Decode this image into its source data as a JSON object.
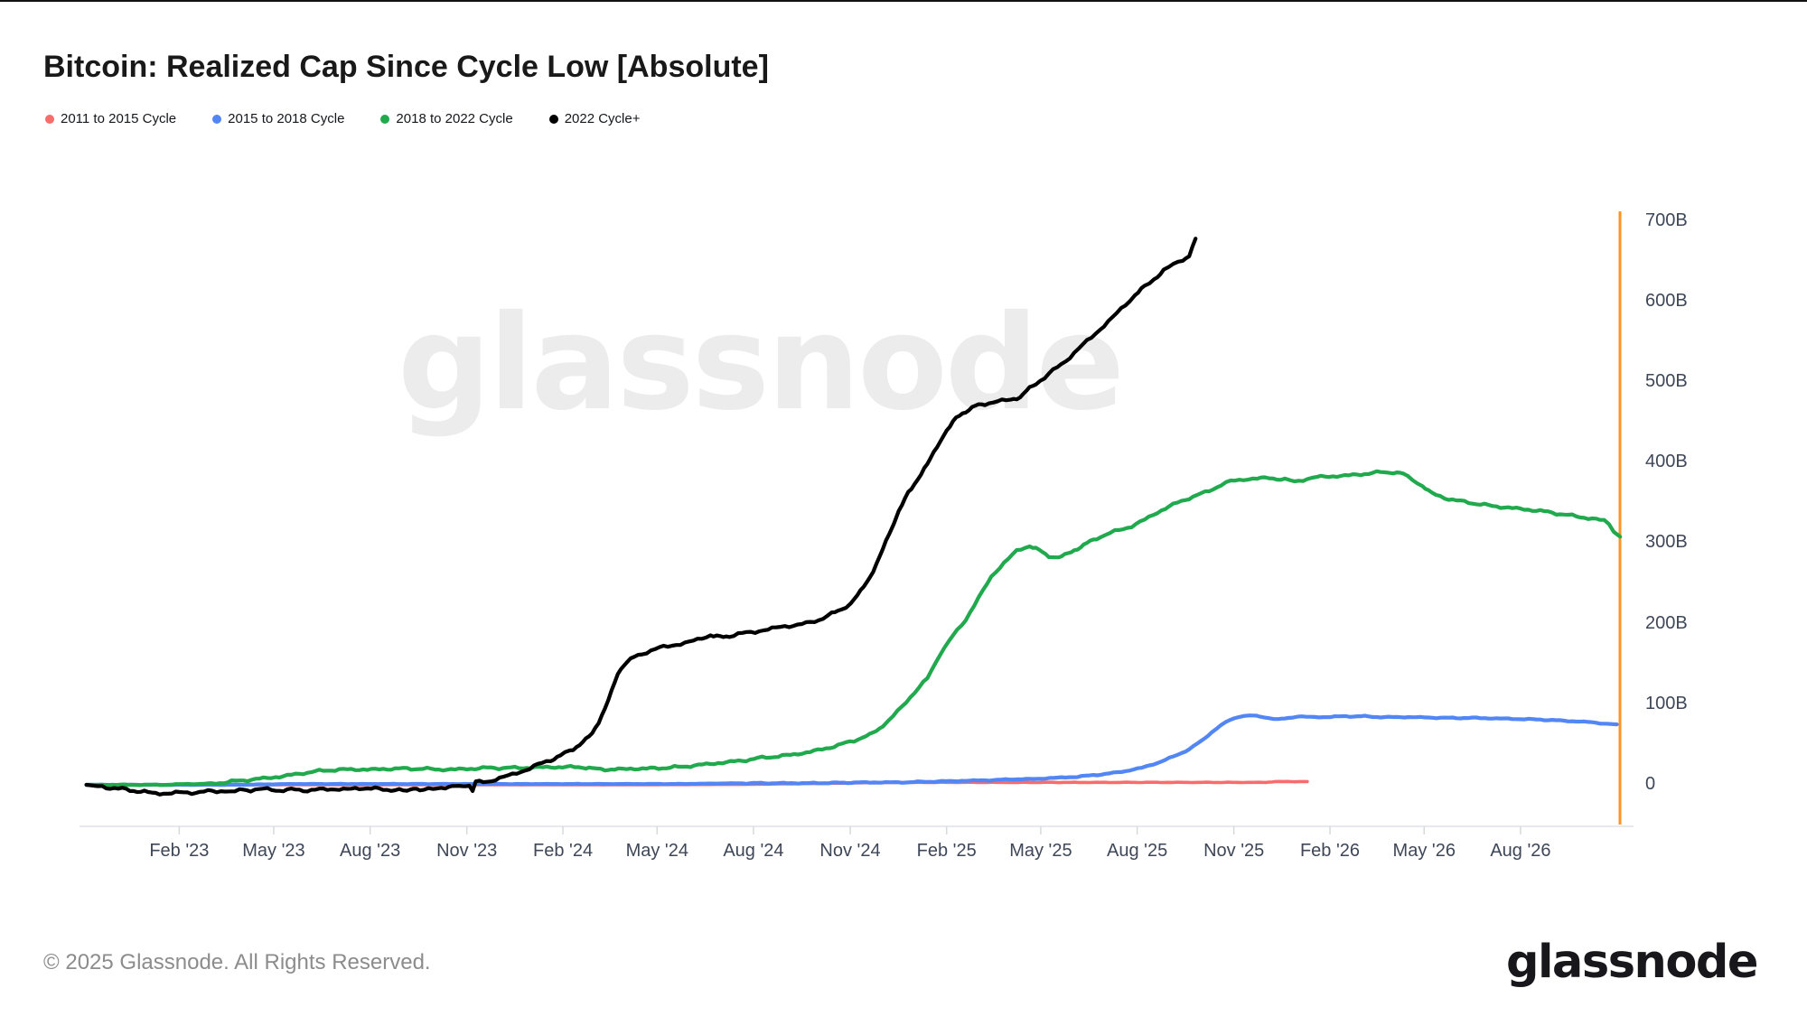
{
  "page": {
    "title": "Bitcoin: Realized Cap Since Cycle Low [Absolute]",
    "copyright": "© 2025 Glassnode. All Rights Reserved.",
    "watermark": "glassnode",
    "brand_wordmark": "glassnode"
  },
  "chart_data": {
    "type": "line",
    "title": "Bitcoin: Realized Cap Since Cycle Low [Absolute]",
    "x_unit": "months since cycle low (plotted on 2022-cycle calendar dates)",
    "y_unit": "realized cap gain since cycle low, billions USD",
    "x_range_months": [
      -0.6,
      48
    ],
    "y_range_billions": [
      -40,
      720
    ],
    "grid": false,
    "legend_position": "top-left",
    "y_axis_side": "right",
    "y_axis_color": "#FF9324",
    "x_axis": {
      "ticks": [
        {
          "t": 2.36,
          "label": "Feb '23"
        },
        {
          "t": 5.32,
          "label": "May '23"
        },
        {
          "t": 8.34,
          "label": "Aug '23"
        },
        {
          "t": 11.37,
          "label": "Nov '23"
        },
        {
          "t": 14.38,
          "label": "Feb '24"
        },
        {
          "t": 17.33,
          "label": "May '24"
        },
        {
          "t": 20.35,
          "label": "Aug '24"
        },
        {
          "t": 23.38,
          "label": "Nov '24"
        },
        {
          "t": 26.4,
          "label": "Feb '25"
        },
        {
          "t": 29.35,
          "label": "May '25"
        },
        {
          "t": 32.37,
          "label": "Aug '25"
        },
        {
          "t": 35.4,
          "label": "Nov '25"
        },
        {
          "t": 38.41,
          "label": "Feb '26"
        },
        {
          "t": 41.36,
          "label": "May '26"
        },
        {
          "t": 44.38,
          "label": "Aug '26"
        }
      ]
    },
    "y_axis": {
      "ticks": [
        {
          "v": 0,
          "label": "0"
        },
        {
          "v": 100,
          "label": "100B"
        },
        {
          "v": 200,
          "label": "200B"
        },
        {
          "v": 300,
          "label": "300B"
        },
        {
          "v": 400,
          "label": "400B"
        },
        {
          "v": 500,
          "label": "500B"
        },
        {
          "v": 600,
          "label": "600B"
        },
        {
          "v": 700,
          "label": "700B"
        }
      ]
    },
    "legend": [
      {
        "label": "2011 to 2015 Cycle",
        "color": "#F86C6B"
      },
      {
        "label": "2015 to 2018 Cycle",
        "color": "#5286F5"
      },
      {
        "label": "2018 to 2022 Cycle",
        "color": "#21A94D"
      },
      {
        "label": "2022 Cycle+",
        "color": "#000000"
      }
    ],
    "series": [
      {
        "name": "2011 to 2015 Cycle",
        "color": "#F86C6B",
        "width": 3.6,
        "amp": 0.25,
        "points": [
          [
            -0.55,
            0
          ],
          [
            4,
            0
          ],
          [
            8,
            0
          ],
          [
            12,
            0
          ],
          [
            16,
            0
          ],
          [
            20,
            0.5
          ],
          [
            21,
            1
          ],
          [
            22,
            1.5
          ],
          [
            23,
            2
          ],
          [
            24,
            2.5
          ],
          [
            25,
            3
          ],
          [
            27,
            3
          ],
          [
            29,
            3
          ],
          [
            31,
            3
          ],
          [
            33,
            3
          ],
          [
            35,
            3
          ],
          [
            36.4,
            3
          ],
          [
            36.7,
            4
          ],
          [
            37.2,
            4
          ],
          [
            37.7,
            4
          ]
        ]
      },
      {
        "name": "2015 to 2018 Cycle",
        "color": "#5286F5",
        "width": 4.2,
        "amp": 0.7,
        "points": [
          [
            -0.55,
            0
          ],
          [
            2,
            0
          ],
          [
            4,
            0
          ],
          [
            6,
            1
          ],
          [
            8,
            1
          ],
          [
            10,
            1
          ],
          [
            12,
            1
          ],
          [
            14,
            1
          ],
          [
            16,
            1
          ],
          [
            18,
            1
          ],
          [
            20,
            2
          ],
          [
            22,
            2
          ],
          [
            24,
            3
          ],
          [
            25,
            3
          ],
          [
            26,
            4
          ],
          [
            27,
            5
          ],
          [
            28,
            6
          ],
          [
            28.5,
            7
          ],
          [
            29,
            7
          ],
          [
            29.5,
            8
          ],
          [
            30,
            9
          ],
          [
            30.5,
            10
          ],
          [
            31,
            12
          ],
          [
            31.5,
            14
          ],
          [
            32,
            17
          ],
          [
            32.5,
            21
          ],
          [
            33,
            27
          ],
          [
            33.5,
            35
          ],
          [
            34,
            44
          ],
          [
            34.4,
            55
          ],
          [
            34.7,
            65
          ],
          [
            35,
            74
          ],
          [
            35.3,
            81
          ],
          [
            35.6,
            85
          ],
          [
            35.9,
            86
          ],
          [
            36.2,
            85
          ],
          [
            36.5,
            83
          ],
          [
            36.8,
            81
          ],
          [
            37.1,
            83
          ],
          [
            37.4,
            85
          ],
          [
            37.8,
            84
          ],
          [
            38.2,
            84
          ],
          [
            38.8,
            85
          ],
          [
            39.5,
            85
          ],
          [
            40,
            84
          ],
          [
            41,
            84
          ],
          [
            42,
            83
          ],
          [
            43,
            83
          ],
          [
            44,
            82
          ],
          [
            45,
            81
          ],
          [
            45.5,
            80
          ],
          [
            46,
            79
          ],
          [
            46.5,
            78
          ],
          [
            47,
            76
          ],
          [
            47.4,
            75
          ]
        ]
      },
      {
        "name": "2018 to 2022 Cycle",
        "color": "#21A94D",
        "width": 4.2,
        "amp": 1.6,
        "points": [
          [
            -0.55,
            0
          ],
          [
            0.5,
            0
          ],
          [
            1,
            0
          ],
          [
            1.5,
            0
          ],
          [
            2,
            0
          ],
          [
            2.5,
            1
          ],
          [
            3,
            1
          ],
          [
            3.5,
            2
          ],
          [
            4,
            4
          ],
          [
            4.5,
            6
          ],
          [
            5,
            8
          ],
          [
            5.5,
            10
          ],
          [
            6,
            13
          ],
          [
            6.5,
            16
          ],
          [
            7,
            18
          ],
          [
            7.5,
            19
          ],
          [
            8,
            19
          ],
          [
            8.5,
            19
          ],
          [
            9,
            20
          ],
          [
            10,
            20
          ],
          [
            10.5,
            19
          ],
          [
            11,
            19
          ],
          [
            11.5,
            20
          ],
          [
            12,
            21
          ],
          [
            13,
            21
          ],
          [
            14,
            22
          ],
          [
            15,
            22
          ],
          [
            15.3,
            20
          ],
          [
            15.7,
            19
          ],
          [
            16,
            19
          ],
          [
            16.5,
            20
          ],
          [
            17,
            20
          ],
          [
            17.5,
            21
          ],
          [
            18,
            22
          ],
          [
            18.5,
            24
          ],
          [
            19,
            26
          ],
          [
            19.5,
            28
          ],
          [
            20,
            30
          ],
          [
            20.5,
            33
          ],
          [
            21,
            35
          ],
          [
            21.5,
            37
          ],
          [
            22,
            40
          ],
          [
            22.5,
            44
          ],
          [
            23,
            49
          ],
          [
            23.5,
            55
          ],
          [
            24,
            62
          ],
          [
            24.3,
            70
          ],
          [
            24.6,
            80
          ],
          [
            25,
            97
          ],
          [
            25.4,
            115
          ],
          [
            25.8,
            132
          ],
          [
            26.2,
            163
          ],
          [
            26.6,
            185
          ],
          [
            27,
            205
          ],
          [
            27.4,
            232
          ],
          [
            27.8,
            258
          ],
          [
            28.2,
            276
          ],
          [
            28.6,
            290
          ],
          [
            29,
            297
          ],
          [
            29.3,
            291
          ],
          [
            29.6,
            284
          ],
          [
            29.9,
            282
          ],
          [
            30.2,
            287
          ],
          [
            30.5,
            293
          ],
          [
            30.8,
            300
          ],
          [
            31.1,
            306
          ],
          [
            31.4,
            311
          ],
          [
            31.8,
            316
          ],
          [
            32.2,
            321
          ],
          [
            32.6,
            329
          ],
          [
            33,
            338
          ],
          [
            33.5,
            348
          ],
          [
            34,
            356
          ],
          [
            34.5,
            363
          ],
          [
            35,
            372
          ],
          [
            35.3,
            377
          ],
          [
            35.7,
            379
          ],
          [
            36,
            380
          ],
          [
            36.5,
            381
          ],
          [
            37,
            379
          ],
          [
            37.3,
            376
          ],
          [
            37.7,
            380
          ],
          [
            38,
            382
          ],
          [
            38.5,
            383
          ],
          [
            39,
            384
          ],
          [
            39.5,
            386
          ],
          [
            40,
            388
          ],
          [
            40.4,
            388
          ],
          [
            40.7,
            386
          ],
          [
            41,
            379
          ],
          [
            41.3,
            371
          ],
          [
            41.6,
            362
          ],
          [
            42,
            356
          ],
          [
            42.5,
            352
          ],
          [
            43,
            349
          ],
          [
            43.5,
            346
          ],
          [
            44,
            344
          ],
          [
            44.5,
            342
          ],
          [
            45,
            340
          ],
          [
            45.5,
            337
          ],
          [
            46,
            334
          ],
          [
            46.5,
            331
          ],
          [
            47,
            328
          ],
          [
            47.15,
            324
          ],
          [
            47.3,
            314
          ],
          [
            47.5,
            308
          ]
        ]
      },
      {
        "name": "2022 Cycle+",
        "color": "#000000",
        "width": 4.2,
        "amp": 2.0,
        "points": [
          [
            -0.55,
            0
          ],
          [
            0.7,
            -6
          ],
          [
            1.5,
            -10
          ],
          [
            2,
            -11
          ],
          [
            2.5,
            -9
          ],
          [
            3,
            -10
          ],
          [
            3.4,
            -7
          ],
          [
            3.8,
            -8
          ],
          [
            4.1,
            -10
          ],
          [
            4.25,
            -5
          ],
          [
            4.6,
            -7
          ],
          [
            5,
            -5
          ],
          [
            5.5,
            -7
          ],
          [
            6,
            -6
          ],
          [
            6.5,
            -7
          ],
          [
            7,
            -5
          ],
          [
            7.5,
            -6
          ],
          [
            8,
            -4
          ],
          [
            8.5,
            -5
          ],
          [
            9,
            -6
          ],
          [
            9.5,
            -8
          ],
          [
            9.7,
            -3
          ],
          [
            9.9,
            -7
          ],
          [
            10.3,
            -5
          ],
          [
            10.7,
            -3
          ],
          [
            11,
            -2
          ],
          [
            11.45,
            -1
          ],
          [
            11.55,
            -7
          ],
          [
            11.65,
            3
          ],
          [
            12,
            4
          ],
          [
            12.4,
            8
          ],
          [
            12.8,
            13
          ],
          [
            13.2,
            18
          ],
          [
            13.6,
            25
          ],
          [
            14,
            31
          ],
          [
            14.3,
            36
          ],
          [
            14.6,
            42
          ],
          [
            14.9,
            50
          ],
          [
            15.1,
            56
          ],
          [
            15.3,
            64
          ],
          [
            15.5,
            78
          ],
          [
            15.7,
            95
          ],
          [
            15.9,
            115
          ],
          [
            16.1,
            138
          ],
          [
            16.3,
            150
          ],
          [
            16.6,
            158
          ],
          [
            17,
            165
          ],
          [
            17.4,
            170
          ],
          [
            17.8,
            173
          ],
          [
            18.2,
            176
          ],
          [
            18.6,
            180
          ],
          [
            19,
            186
          ],
          [
            19.3,
            183
          ],
          [
            19.6,
            185
          ],
          [
            20,
            188
          ],
          [
            20.4,
            190
          ],
          [
            20.8,
            193
          ],
          [
            21.2,
            196
          ],
          [
            21.6,
            198
          ],
          [
            22,
            200
          ],
          [
            22.4,
            205
          ],
          [
            22.8,
            212
          ],
          [
            23.1,
            218
          ],
          [
            23.4,
            225
          ],
          [
            23.7,
            240
          ],
          [
            24,
            258
          ],
          [
            24.3,
            282
          ],
          [
            24.6,
            312
          ],
          [
            24.9,
            340
          ],
          [
            25.2,
            362
          ],
          [
            25.5,
            380
          ],
          [
            25.8,
            398
          ],
          [
            26.1,
            420
          ],
          [
            26.4,
            440
          ],
          [
            26.7,
            455
          ],
          [
            27,
            464
          ],
          [
            27.3,
            470
          ],
          [
            27.6,
            473
          ],
          [
            28,
            476
          ],
          [
            28.4,
            478
          ],
          [
            28.7,
            481
          ],
          [
            28.9,
            489
          ],
          [
            29.2,
            498
          ],
          [
            29.6,
            510
          ],
          [
            30,
            522
          ],
          [
            30.4,
            536
          ],
          [
            30.8,
            551
          ],
          [
            31.2,
            565
          ],
          [
            31.6,
            580
          ],
          [
            32,
            596
          ],
          [
            32.3,
            608
          ],
          [
            32.6,
            618
          ],
          [
            32.9,
            628
          ],
          [
            33.2,
            638
          ],
          [
            33.5,
            646
          ],
          [
            33.8,
            652
          ],
          [
            34,
            656
          ],
          [
            34.1,
            668
          ],
          [
            34.2,
            678
          ]
        ]
      }
    ]
  }
}
